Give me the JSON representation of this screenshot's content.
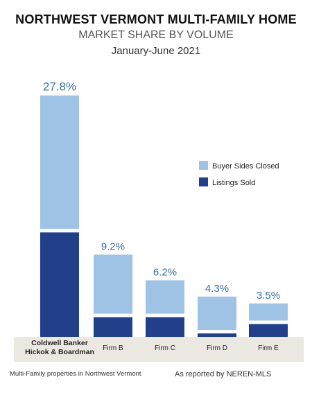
{
  "header": {
    "title": "NORTHWEST VERMONT MULTI-FAMILY HOME",
    "subtitle": "MARKET SHARE BY VOLUME",
    "period": "January-June 2021"
  },
  "chart_data": {
    "type": "bar",
    "stacked": true,
    "categories": [
      "Coldwell Banker\nHickok & Boardman",
      "Firm B",
      "Firm C",
      "Firm D",
      "Firm E"
    ],
    "totals": [
      27.8,
      9.2,
      6.2,
      4.3,
      3.5
    ],
    "total_labels": [
      "27.8%",
      "9.2%",
      "6.2%",
      "4.3%",
      "3.5%"
    ],
    "series": [
      {
        "name": "Listings Sold",
        "values": [
          12.2,
          2.3,
          2.3,
          0.4,
          1.5
        ]
      },
      {
        "name": "Buyer Sides Closed",
        "values": [
          15.6,
          6.9,
          3.9,
          3.9,
          2.0
        ]
      }
    ],
    "legend": {
      "position": "right",
      "items": [
        {
          "label": "Buyer Sides Closed",
          "color": "#9fc3e5"
        },
        {
          "label": "Listings Sold",
          "color": "#223f8a"
        }
      ]
    },
    "colors": {
      "listings": "#223f8a",
      "buyer": "#9fc3e5",
      "label_text": "#3a6fa8",
      "axis_band": "#ebe8e2"
    },
    "grid": false
  },
  "footer": {
    "left": "Multi-Family properties in Northwest Vermont",
    "right": "As reported by NEREN-MLS"
  }
}
